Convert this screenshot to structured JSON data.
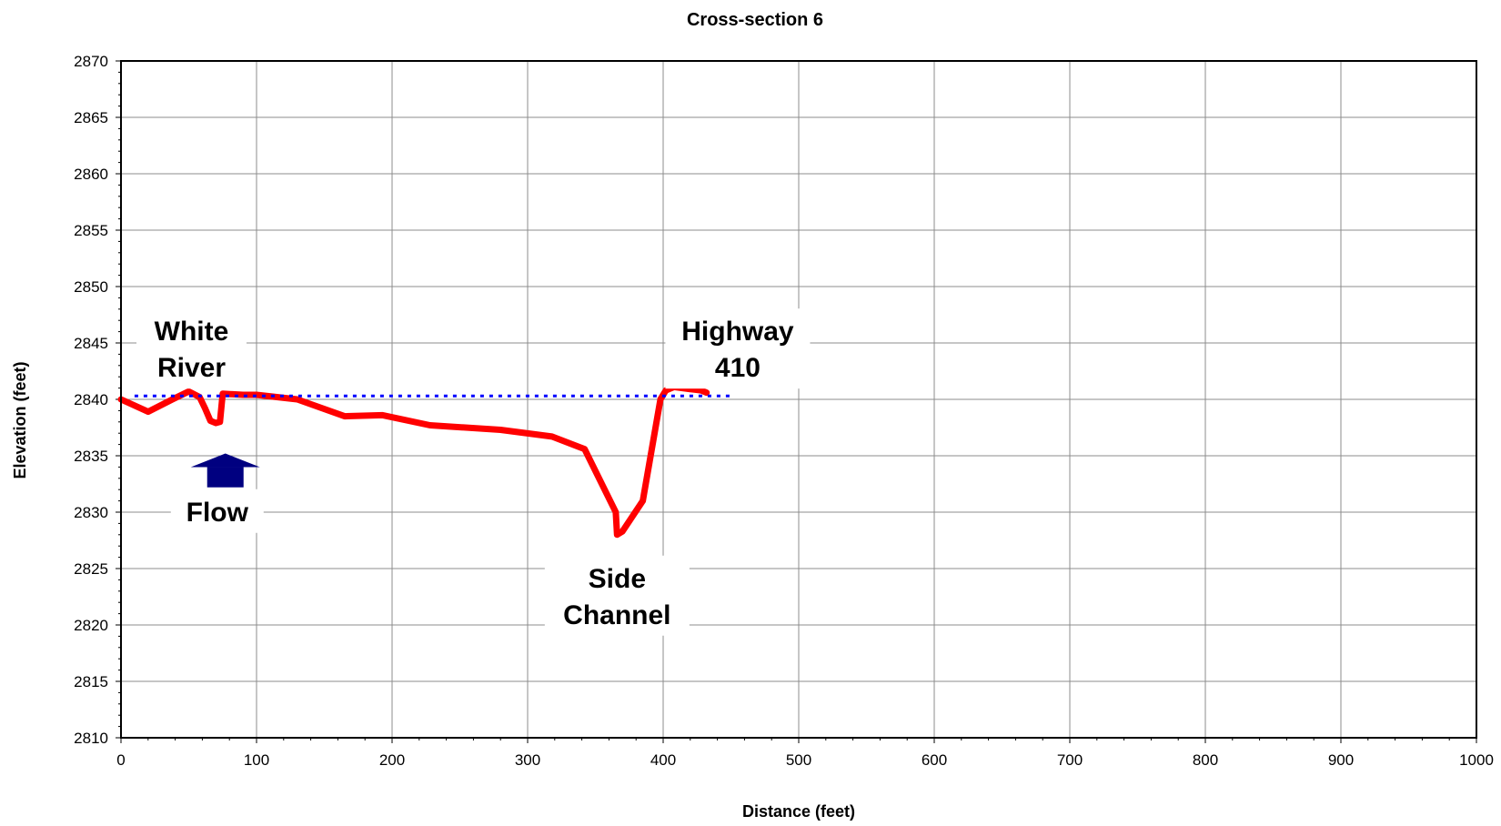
{
  "chart_data": {
    "type": "line",
    "title": "Cross-section 6",
    "xlabel": "Distance (feet)",
    "ylabel": "Elevation (feet)",
    "xlim": [
      0,
      1000
    ],
    "ylim": [
      2810,
      2870
    ],
    "x_ticks": [
      "0",
      "100",
      "200",
      "300",
      "400",
      "500",
      "600",
      "700",
      "800",
      "900",
      "1000"
    ],
    "y_ticks": [
      "2810",
      "2815",
      "2820",
      "2825",
      "2830",
      "2835",
      "2840",
      "2845",
      "2850",
      "2855",
      "2860",
      "2865",
      "2870"
    ],
    "grid": true,
    "legend": "none",
    "series": [
      {
        "style": "solid",
        "color": "#ff0000",
        "points": [
          [
            0,
            2840.0
          ],
          [
            20,
            2838.9
          ],
          [
            38,
            2840.0
          ],
          [
            50,
            2840.7
          ],
          [
            58,
            2840.2
          ],
          [
            62,
            2839.2
          ],
          [
            66,
            2838.1
          ],
          [
            70,
            2837.9
          ],
          [
            73,
            2838.0
          ],
          [
            75,
            2840.5
          ],
          [
            90,
            2840.4
          ],
          [
            100,
            2840.4
          ],
          [
            130,
            2840.0
          ],
          [
            165,
            2838.5
          ],
          [
            193,
            2838.6
          ],
          [
            228,
            2837.7
          ],
          [
            280,
            2837.3
          ],
          [
            318,
            2836.7
          ],
          [
            342,
            2835.6
          ],
          [
            365,
            2830.0
          ],
          [
            366,
            2828.0
          ],
          [
            370,
            2828.3
          ],
          [
            385,
            2831.0
          ],
          [
            398,
            2840.0
          ],
          [
            402,
            2840.8
          ],
          [
            408,
            2841.1
          ],
          [
            420,
            2840.9
          ],
          [
            428,
            2840.8
          ],
          [
            432,
            2840.6
          ]
        ]
      },
      {
        "style": "dotted",
        "color": "#0000ff",
        "points": [
          [
            10,
            2840.3
          ],
          [
            450,
            2840.3
          ]
        ]
      }
    ],
    "annotations": [
      {
        "lines": [
          "White",
          "River"
        ],
        "x": 52,
        "y": 2844.5
      },
      {
        "lines": [
          "Highway",
          "410"
        ],
        "x": 455,
        "y": 2844.5
      },
      {
        "lines": [
          "Flow"
        ],
        "x": 71,
        "y": 2830.1
      },
      {
        "lines": [
          "Side",
          "Channel"
        ],
        "x": 366,
        "y": 2822.6
      }
    ],
    "arrow": {
      "x": 77,
      "y_tip": 2835.2,
      "y_base": 2832.2,
      "direction": "up",
      "color": "#000080"
    }
  }
}
